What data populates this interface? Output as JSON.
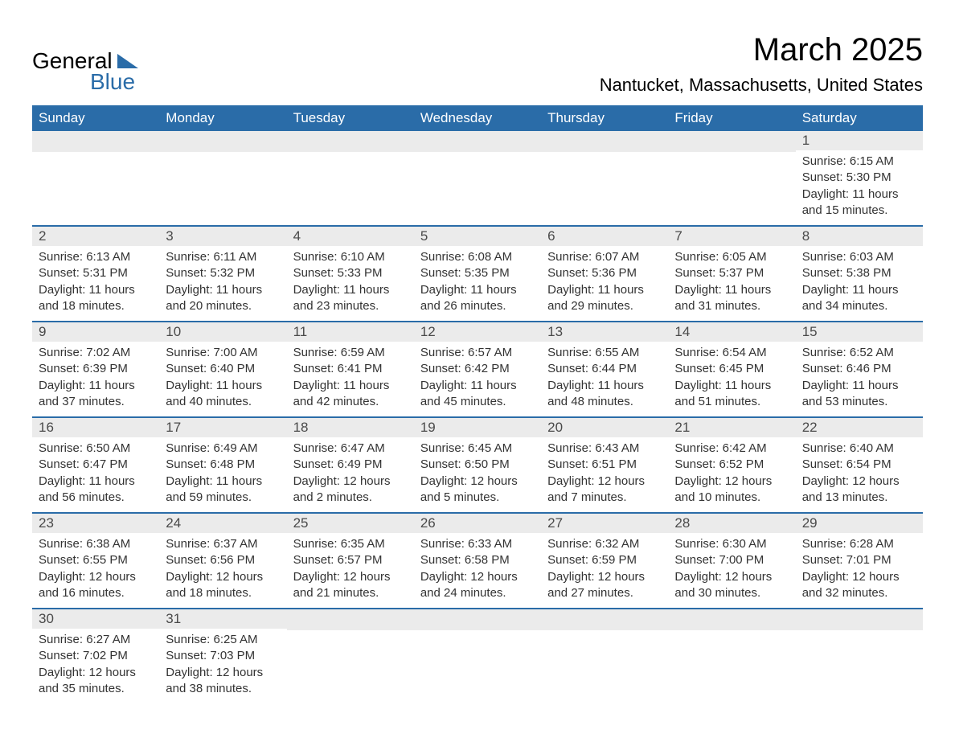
{
  "logo": {
    "word1": "General",
    "word2": "Blue",
    "triangle_color": "#2a6ca8",
    "text_color_2": "#2a6ca8"
  },
  "header": {
    "month_title": "March 2025",
    "location": "Nantucket, Massachusetts, United States"
  },
  "colors": {
    "header_bg": "#2a6ca8",
    "header_text": "#ffffff",
    "daynum_bg": "#ebebeb",
    "daynum_text": "#4a4a4a",
    "row_divider": "#2a6ca8",
    "body_text": "#333333",
    "page_bg": "#ffffff"
  },
  "weekdays": [
    "Sunday",
    "Monday",
    "Tuesday",
    "Wednesday",
    "Thursday",
    "Friday",
    "Saturday"
  ],
  "weeks": [
    [
      {
        "empty": true
      },
      {
        "empty": true
      },
      {
        "empty": true
      },
      {
        "empty": true
      },
      {
        "empty": true
      },
      {
        "empty": true
      },
      {
        "day": "1",
        "sunrise": "Sunrise: 6:15 AM",
        "sunset": "Sunset: 5:30 PM",
        "daylight1": "Daylight: 11 hours",
        "daylight2": "and 15 minutes."
      }
    ],
    [
      {
        "day": "2",
        "sunrise": "Sunrise: 6:13 AM",
        "sunset": "Sunset: 5:31 PM",
        "daylight1": "Daylight: 11 hours",
        "daylight2": "and 18 minutes."
      },
      {
        "day": "3",
        "sunrise": "Sunrise: 6:11 AM",
        "sunset": "Sunset: 5:32 PM",
        "daylight1": "Daylight: 11 hours",
        "daylight2": "and 20 minutes."
      },
      {
        "day": "4",
        "sunrise": "Sunrise: 6:10 AM",
        "sunset": "Sunset: 5:33 PM",
        "daylight1": "Daylight: 11 hours",
        "daylight2": "and 23 minutes."
      },
      {
        "day": "5",
        "sunrise": "Sunrise: 6:08 AM",
        "sunset": "Sunset: 5:35 PM",
        "daylight1": "Daylight: 11 hours",
        "daylight2": "and 26 minutes."
      },
      {
        "day": "6",
        "sunrise": "Sunrise: 6:07 AM",
        "sunset": "Sunset: 5:36 PM",
        "daylight1": "Daylight: 11 hours",
        "daylight2": "and 29 minutes."
      },
      {
        "day": "7",
        "sunrise": "Sunrise: 6:05 AM",
        "sunset": "Sunset: 5:37 PM",
        "daylight1": "Daylight: 11 hours",
        "daylight2": "and 31 minutes."
      },
      {
        "day": "8",
        "sunrise": "Sunrise: 6:03 AM",
        "sunset": "Sunset: 5:38 PM",
        "daylight1": "Daylight: 11 hours",
        "daylight2": "and 34 minutes."
      }
    ],
    [
      {
        "day": "9",
        "sunrise": "Sunrise: 7:02 AM",
        "sunset": "Sunset: 6:39 PM",
        "daylight1": "Daylight: 11 hours",
        "daylight2": "and 37 minutes."
      },
      {
        "day": "10",
        "sunrise": "Sunrise: 7:00 AM",
        "sunset": "Sunset: 6:40 PM",
        "daylight1": "Daylight: 11 hours",
        "daylight2": "and 40 minutes."
      },
      {
        "day": "11",
        "sunrise": "Sunrise: 6:59 AM",
        "sunset": "Sunset: 6:41 PM",
        "daylight1": "Daylight: 11 hours",
        "daylight2": "and 42 minutes."
      },
      {
        "day": "12",
        "sunrise": "Sunrise: 6:57 AM",
        "sunset": "Sunset: 6:42 PM",
        "daylight1": "Daylight: 11 hours",
        "daylight2": "and 45 minutes."
      },
      {
        "day": "13",
        "sunrise": "Sunrise: 6:55 AM",
        "sunset": "Sunset: 6:44 PM",
        "daylight1": "Daylight: 11 hours",
        "daylight2": "and 48 minutes."
      },
      {
        "day": "14",
        "sunrise": "Sunrise: 6:54 AM",
        "sunset": "Sunset: 6:45 PM",
        "daylight1": "Daylight: 11 hours",
        "daylight2": "and 51 minutes."
      },
      {
        "day": "15",
        "sunrise": "Sunrise: 6:52 AM",
        "sunset": "Sunset: 6:46 PM",
        "daylight1": "Daylight: 11 hours",
        "daylight2": "and 53 minutes."
      }
    ],
    [
      {
        "day": "16",
        "sunrise": "Sunrise: 6:50 AM",
        "sunset": "Sunset: 6:47 PM",
        "daylight1": "Daylight: 11 hours",
        "daylight2": "and 56 minutes."
      },
      {
        "day": "17",
        "sunrise": "Sunrise: 6:49 AM",
        "sunset": "Sunset: 6:48 PM",
        "daylight1": "Daylight: 11 hours",
        "daylight2": "and 59 minutes."
      },
      {
        "day": "18",
        "sunrise": "Sunrise: 6:47 AM",
        "sunset": "Sunset: 6:49 PM",
        "daylight1": "Daylight: 12 hours",
        "daylight2": "and 2 minutes."
      },
      {
        "day": "19",
        "sunrise": "Sunrise: 6:45 AM",
        "sunset": "Sunset: 6:50 PM",
        "daylight1": "Daylight: 12 hours",
        "daylight2": "and 5 minutes."
      },
      {
        "day": "20",
        "sunrise": "Sunrise: 6:43 AM",
        "sunset": "Sunset: 6:51 PM",
        "daylight1": "Daylight: 12 hours",
        "daylight2": "and 7 minutes."
      },
      {
        "day": "21",
        "sunrise": "Sunrise: 6:42 AM",
        "sunset": "Sunset: 6:52 PM",
        "daylight1": "Daylight: 12 hours",
        "daylight2": "and 10 minutes."
      },
      {
        "day": "22",
        "sunrise": "Sunrise: 6:40 AM",
        "sunset": "Sunset: 6:54 PM",
        "daylight1": "Daylight: 12 hours",
        "daylight2": "and 13 minutes."
      }
    ],
    [
      {
        "day": "23",
        "sunrise": "Sunrise: 6:38 AM",
        "sunset": "Sunset: 6:55 PM",
        "daylight1": "Daylight: 12 hours",
        "daylight2": "and 16 minutes."
      },
      {
        "day": "24",
        "sunrise": "Sunrise: 6:37 AM",
        "sunset": "Sunset: 6:56 PM",
        "daylight1": "Daylight: 12 hours",
        "daylight2": "and 18 minutes."
      },
      {
        "day": "25",
        "sunrise": "Sunrise: 6:35 AM",
        "sunset": "Sunset: 6:57 PM",
        "daylight1": "Daylight: 12 hours",
        "daylight2": "and 21 minutes."
      },
      {
        "day": "26",
        "sunrise": "Sunrise: 6:33 AM",
        "sunset": "Sunset: 6:58 PM",
        "daylight1": "Daylight: 12 hours",
        "daylight2": "and 24 minutes."
      },
      {
        "day": "27",
        "sunrise": "Sunrise: 6:32 AM",
        "sunset": "Sunset: 6:59 PM",
        "daylight1": "Daylight: 12 hours",
        "daylight2": "and 27 minutes."
      },
      {
        "day": "28",
        "sunrise": "Sunrise: 6:30 AM",
        "sunset": "Sunset: 7:00 PM",
        "daylight1": "Daylight: 12 hours",
        "daylight2": "and 30 minutes."
      },
      {
        "day": "29",
        "sunrise": "Sunrise: 6:28 AM",
        "sunset": "Sunset: 7:01 PM",
        "daylight1": "Daylight: 12 hours",
        "daylight2": "and 32 minutes."
      }
    ],
    [
      {
        "day": "30",
        "sunrise": "Sunrise: 6:27 AM",
        "sunset": "Sunset: 7:02 PM",
        "daylight1": "Daylight: 12 hours",
        "daylight2": "and 35 minutes."
      },
      {
        "day": "31",
        "sunrise": "Sunrise: 6:25 AM",
        "sunset": "Sunset: 7:03 PM",
        "daylight1": "Daylight: 12 hours",
        "daylight2": "and 38 minutes."
      },
      {
        "empty": true
      },
      {
        "empty": true
      },
      {
        "empty": true
      },
      {
        "empty": true
      },
      {
        "empty": true
      }
    ]
  ]
}
